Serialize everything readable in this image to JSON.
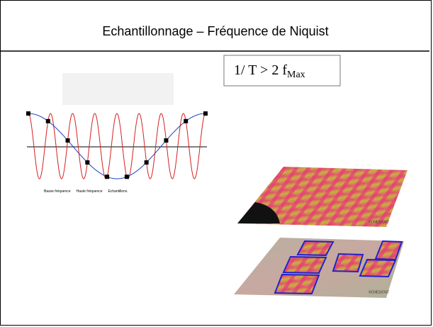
{
  "slide": {
    "title": "Echantillonnage – Fréquence de Niquist",
    "formula": {
      "text": "1/ T > 2 f",
      "subscript": "Max"
    },
    "figure": {
      "legend": [
        "Basse fréquence",
        "Haute fréquence",
        "Echantillons"
      ]
    },
    "images": [
      {
        "credit": "©CNES/OST"
      },
      {
        "credit": "©CNES/OST"
      }
    ]
  }
}
